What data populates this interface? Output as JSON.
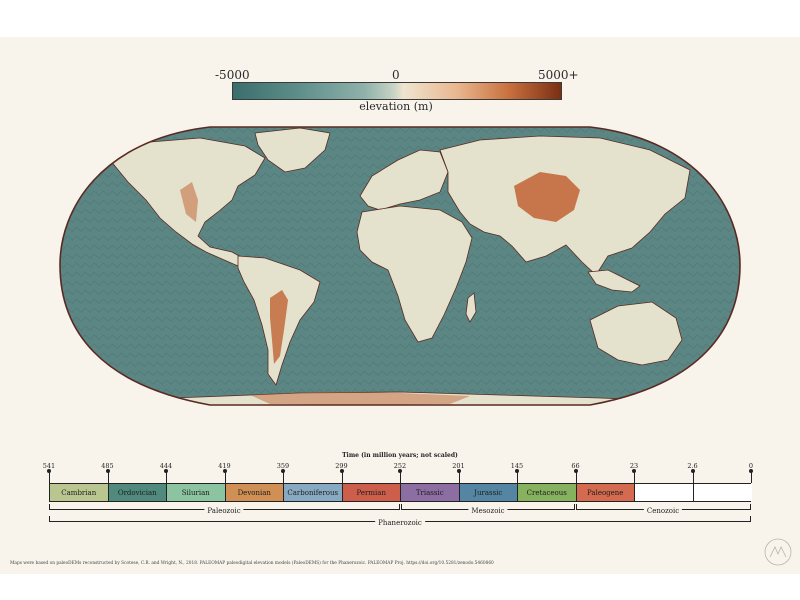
{
  "legend": {
    "min_label": "-5000",
    "mid_label": "0",
    "max_label": "5000+",
    "title": "elevation (m)",
    "colors": [
      "#3a6e6c",
      "#8fb1aa",
      "#efe4d0",
      "#c9713e",
      "#7a2f14"
    ]
  },
  "map": {
    "ocean_color": "#5b8684",
    "land_color": "#e4e1cc",
    "highland_color": "#c26a3c",
    "coast_color": "#5a2a22"
  },
  "timeline": {
    "title": "Time (in million years; not scaled)",
    "ticks": [
      "541",
      "485",
      "444",
      "419",
      "359",
      "299",
      "252",
      "201",
      "145",
      "66",
      "23",
      "2.6",
      "0"
    ],
    "periods": [
      {
        "name": "Cambrian",
        "color": "#b9c68f"
      },
      {
        "name": "Ordovician",
        "color": "#4f8a7c"
      },
      {
        "name": "Silurian",
        "color": "#8cc4a2"
      },
      {
        "name": "Devonian",
        "color": "#cf8f55"
      },
      {
        "name": "Carboniferous",
        "color": "#87aac2"
      },
      {
        "name": "Permian",
        "color": "#cc5e4b"
      },
      {
        "name": "Triassic",
        "color": "#8d6ea2"
      },
      {
        "name": "Jurassic",
        "color": "#5486a4"
      },
      {
        "name": "Cretaceous",
        "color": "#86b15f"
      },
      {
        "name": "Paleogene",
        "color": "#d46b50"
      },
      {
        "name": "",
        "color": "#ffffff"
      },
      {
        "name": "",
        "color": "#ffffff"
      }
    ],
    "eras": [
      "Paleozoic",
      "Mesozoic",
      "Cenozoic"
    ],
    "eon": "Phanerozoic"
  },
  "footer": {
    "source": "Maps were based on paleoDEMs reconstructed by Scotese, C.R. and Wright, N., 2018. PALEOMAP paleodigital elevation models (PaleoDEMS) for the Phanerozoic. PALEOMAP Proj. https://doi.org/10.5281/zenodo.5460860"
  }
}
